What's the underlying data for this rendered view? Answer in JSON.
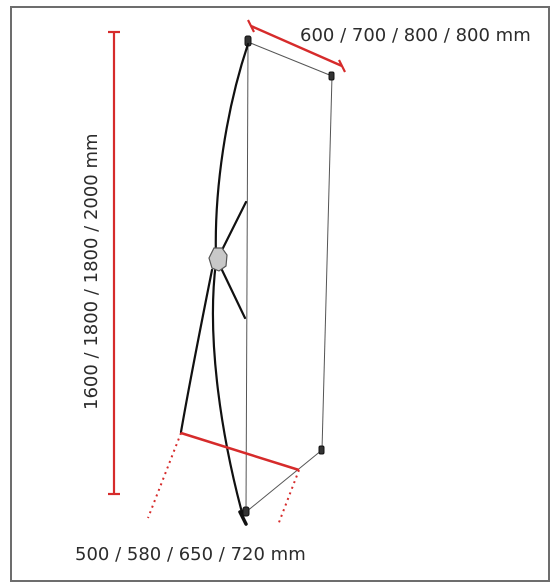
{
  "diagram": {
    "width_label": "600 / 700 / 800 / 800 mm",
    "height_label": "1600 / 1800 / 1800 / 2000  mm",
    "base_label": "500 / 580 / 650 / 720 mm"
  },
  "colors": {
    "dimension": "#d62b2b",
    "structure": "#111111",
    "banner": "#555555",
    "frame": "#6d6d6d",
    "text": "#2c2c2c",
    "hub": "#c8c8c8"
  }
}
